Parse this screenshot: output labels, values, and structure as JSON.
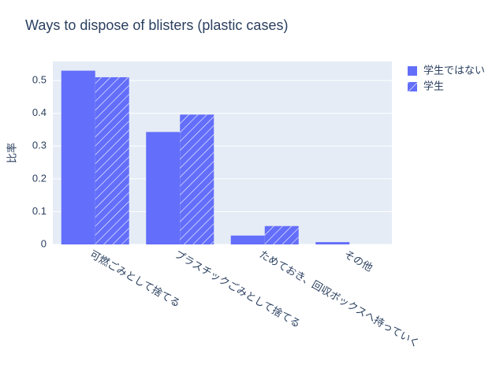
{
  "chart_data": {
    "type": "bar",
    "title": "Ways to dispose of blisters (plastic cases)",
    "y_label": "比率",
    "categories": [
      "可燃ごみとして捨てる",
      "プラスチックごみとして捨てる",
      "ためておき、回収ボックスへ持っていく",
      "その他"
    ],
    "series": [
      {
        "name": "学生ではない",
        "color": "#636efa",
        "pattern": "",
        "values": [
          0.53,
          0.343,
          0.027,
          0.007
        ]
      },
      {
        "name": "学生",
        "color": "#636efa",
        "pattern": "/",
        "values": [
          0.51,
          0.396,
          0.056,
          0
        ]
      }
    ],
    "ylim": [
      0,
      0.558
    ],
    "yticks": [
      0,
      0.1,
      0.2,
      0.3,
      0.4,
      0.5
    ],
    "grid": true,
    "legend": "top-right"
  }
}
